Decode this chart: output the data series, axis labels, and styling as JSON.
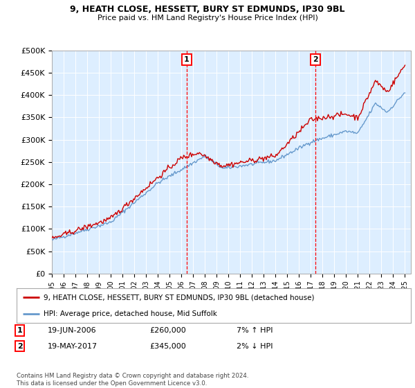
{
  "title1": "9, HEATH CLOSE, HESSETT, BURY ST EDMUNDS, IP30 9BL",
  "title2": "Price paid vs. HM Land Registry's House Price Index (HPI)",
  "ylabel_ticks": [
    "£0",
    "£50K",
    "£100K",
    "£150K",
    "£200K",
    "£250K",
    "£300K",
    "£350K",
    "£400K",
    "£450K",
    "£500K"
  ],
  "ytick_values": [
    0,
    50000,
    100000,
    150000,
    200000,
    250000,
    300000,
    350000,
    400000,
    450000,
    500000
  ],
  "xlim_start": 1995.0,
  "xlim_end": 2025.5,
  "ylim_min": 0,
  "ylim_max": 500000,
  "marker1_x": 2006.46,
  "marker1_label": "1",
  "marker2_x": 2017.38,
  "marker2_label": "2",
  "sale1_date": "19-JUN-2006",
  "sale1_price": "£260,000",
  "sale1_hpi": "7% ↑ HPI",
  "sale2_date": "19-MAY-2017",
  "sale2_price": "£345,000",
  "sale2_hpi": "2% ↓ HPI",
  "legend_line1": "9, HEATH CLOSE, HESSETT, BURY ST EDMUNDS, IP30 9BL (detached house)",
  "legend_line2": "HPI: Average price, detached house, Mid Suffolk",
  "footer": "Contains HM Land Registry data © Crown copyright and database right 2024.\nThis data is licensed under the Open Government Licence v3.0.",
  "line_color_red": "#cc0000",
  "line_color_blue": "#6699cc",
  "bg_color": "#ddeeff"
}
